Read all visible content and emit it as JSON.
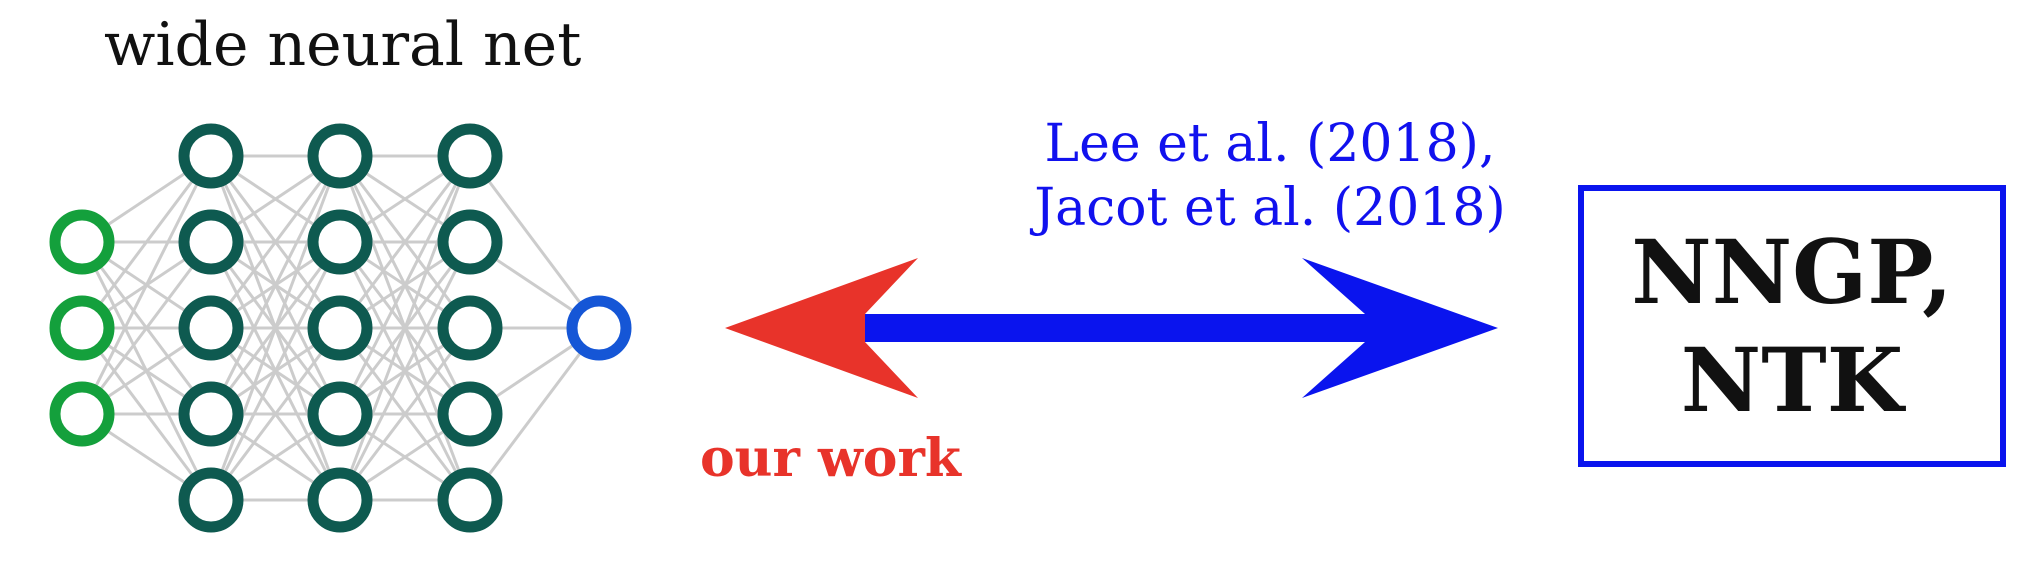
{
  "title": "wide neural net",
  "citation": {
    "line1": "Lee et al. (2018),",
    "line2": "Jacot et al. (2018)"
  },
  "our_work_label": "our work",
  "result_box": {
    "line1": "NNGP,",
    "line2": "NTK"
  },
  "network": {
    "input_units": 3,
    "hidden_layers": 3,
    "hidden_units": 5,
    "output_units": 1
  },
  "colors": {
    "input_node": "#14a03c",
    "hidden_node": "#0e5a50",
    "output_node": "#1556d6",
    "edge": "#cccccc",
    "our_work": "#e8332a",
    "citation": "#1111ee",
    "box_border": "#0a14ee"
  }
}
